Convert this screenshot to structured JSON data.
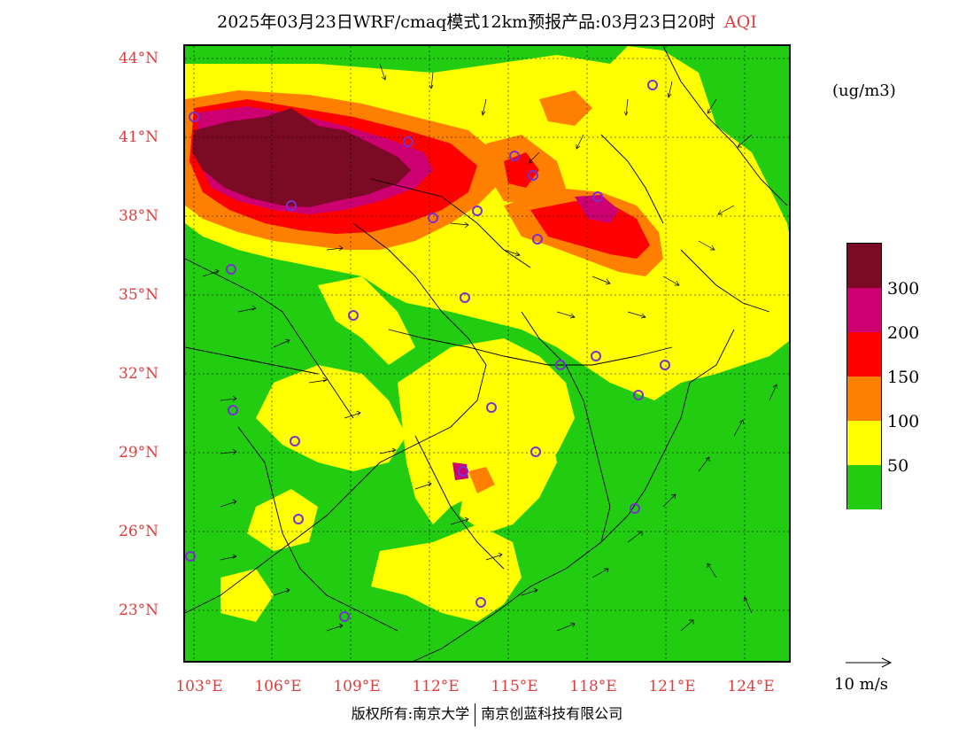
{
  "title": "2025年03月23日WRF/cmaq模式12km预报产品:03月23日20时",
  "title_suffix": "AQI",
  "unit": "(ug/m3)",
  "legend": {
    "colors": [
      "#7b0a25",
      "#cc0070",
      "#ff0000",
      "#ff8000",
      "#ffff00",
      "#22cc11"
    ],
    "labels": [
      "300",
      "200",
      "150",
      "100",
      "50"
    ]
  },
  "lat_labels": [
    "44°N",
    "41°N",
    "38°N",
    "35°N",
    "32°N",
    "29°N",
    "26°N",
    "23°N"
  ],
  "lon_labels": [
    "103°E",
    "106°E",
    "109°E",
    "112°E",
    "115°E",
    "118°E",
    "121°E",
    "124°E"
  ],
  "wind_reference": "10 m/s",
  "footer": {
    "left": "版权所有:南京大学",
    "right": "南京创蓝科技有限公司"
  },
  "map_colors": {
    "good": "#22cc11",
    "moderate": "#ffff00",
    "sensitive": "#ff8000",
    "unhealthy": "#ff0000",
    "very_unhealthy": "#cc0070",
    "hazardous": "#7b0a25",
    "city_marker": "#7b2fd0"
  }
}
